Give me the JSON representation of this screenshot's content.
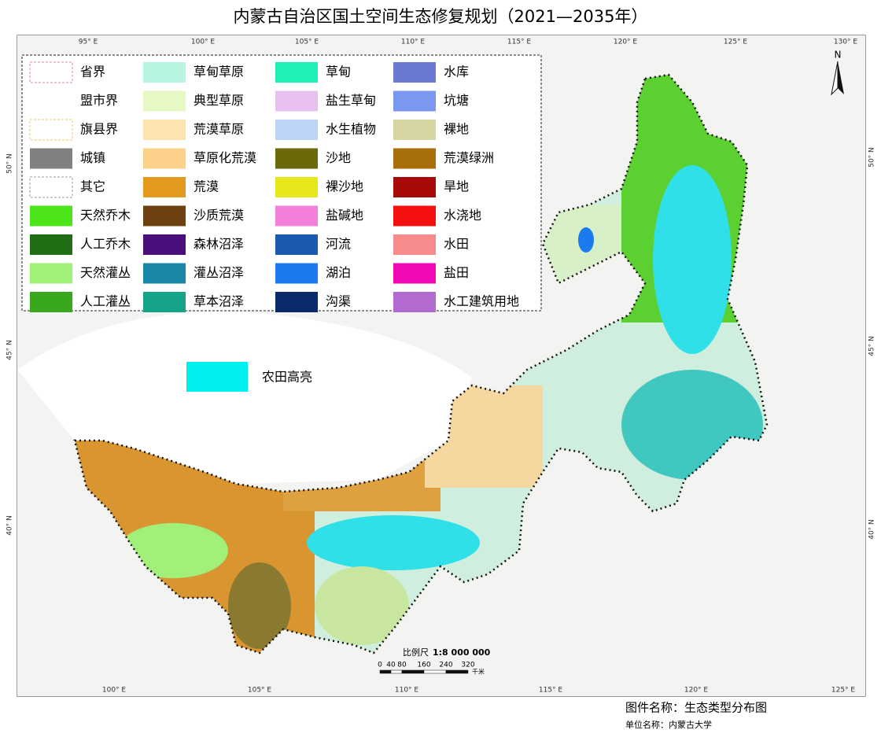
{
  "title": "内蒙古自治区国土空间生态修复规划（2021—2035年）",
  "legend": [
    {
      "label": "省界",
      "color": "#ffffff",
      "border": "#e87fb0"
    },
    {
      "label": "盟市界",
      "color": "#ffffff",
      "border": "#ffffff"
    },
    {
      "label": "旗县界",
      "color": "#ffffff",
      "border": "#e8c860"
    },
    {
      "label": "城镇",
      "color": "#808080"
    },
    {
      "label": "其它",
      "color": "#ffffff",
      "border": "#999999"
    },
    {
      "label": "天然乔木",
      "color": "#4ce51a"
    },
    {
      "label": "人工乔木",
      "color": "#1f6e14"
    },
    {
      "label": "天然灌丛",
      "color": "#a0f07a"
    },
    {
      "label": "人工灌丛",
      "color": "#3aa81e"
    },
    {
      "label": "草甸草原",
      "color": "#b8f5df"
    },
    {
      "label": "典型草原",
      "color": "#e6f9c4"
    },
    {
      "label": "荒漠草原",
      "color": "#fbe4b0"
    },
    {
      "label": "草原化荒漠",
      "color": "#fcd28a"
    },
    {
      "label": "荒漠",
      "color": "#e39b1f"
    },
    {
      "label": "沙质荒漠",
      "color": "#6e4210"
    },
    {
      "label": "森林沼泽",
      "color": "#4a0f7a"
    },
    {
      "label": "灌丛沼泽",
      "color": "#1a86a8"
    },
    {
      "label": "草本沼泽",
      "color": "#16a489"
    },
    {
      "label": "草甸",
      "color": "#20f0b8"
    },
    {
      "label": "盐生草甸",
      "color": "#e8c0f0"
    },
    {
      "label": "水生植物",
      "color": "#bcd4f6"
    },
    {
      "label": "沙地",
      "color": "#6a6a0a"
    },
    {
      "label": "裸沙地",
      "color": "#e6e61a"
    },
    {
      "label": "盐碱地",
      "color": "#f27fd8"
    },
    {
      "label": "河流",
      "color": "#1a5ab0"
    },
    {
      "label": "湖泊",
      "color": "#1a7af0"
    },
    {
      "label": "沟渠",
      "color": "#0a2a6e"
    },
    {
      "label": "水库",
      "color": "#6a7ad0"
    },
    {
      "label": "坑塘",
      "color": "#7a98f0"
    },
    {
      "label": "裸地",
      "color": "#d6d4a0"
    },
    {
      "label": "荒漠绿洲",
      "color": "#a86e0a"
    },
    {
      "label": "旱地",
      "color": "#a80a0a"
    },
    {
      "label": "水浇地",
      "color": "#f51010"
    },
    {
      "label": "水田",
      "color": "#f78a8a"
    },
    {
      "label": "盐田",
      "color": "#f00ab4"
    },
    {
      "label": "水工建筑用地",
      "color": "#b06ad0"
    }
  ],
  "highlight": {
    "label": "农田高亮",
    "color": "#00f0f0"
  },
  "north": "N",
  "top_labels": [
    "95° E",
    "100° E",
    "105° E",
    "110° E",
    "115° E",
    "120° E",
    "125° E",
    "130° E"
  ],
  "bottom_labels": [
    "100° E",
    "105° E",
    "110° E",
    "115° E",
    "120° E",
    "125° E"
  ],
  "left_labels": [
    "50° N",
    "45° N",
    "40° N"
  ],
  "right_labels": [
    "50° N",
    "45° N",
    "40° N"
  ],
  "scale": {
    "caption": "比例尺",
    "ratio": "1:8 000 000",
    "ticks": [
      "0",
      "40",
      "80",
      "160",
      "240",
      "320"
    ],
    "unit": "千米"
  },
  "footer": {
    "map_name": "图件名称：生态类型分布图",
    "unit_name": "单位名称：内蒙古大学"
  }
}
